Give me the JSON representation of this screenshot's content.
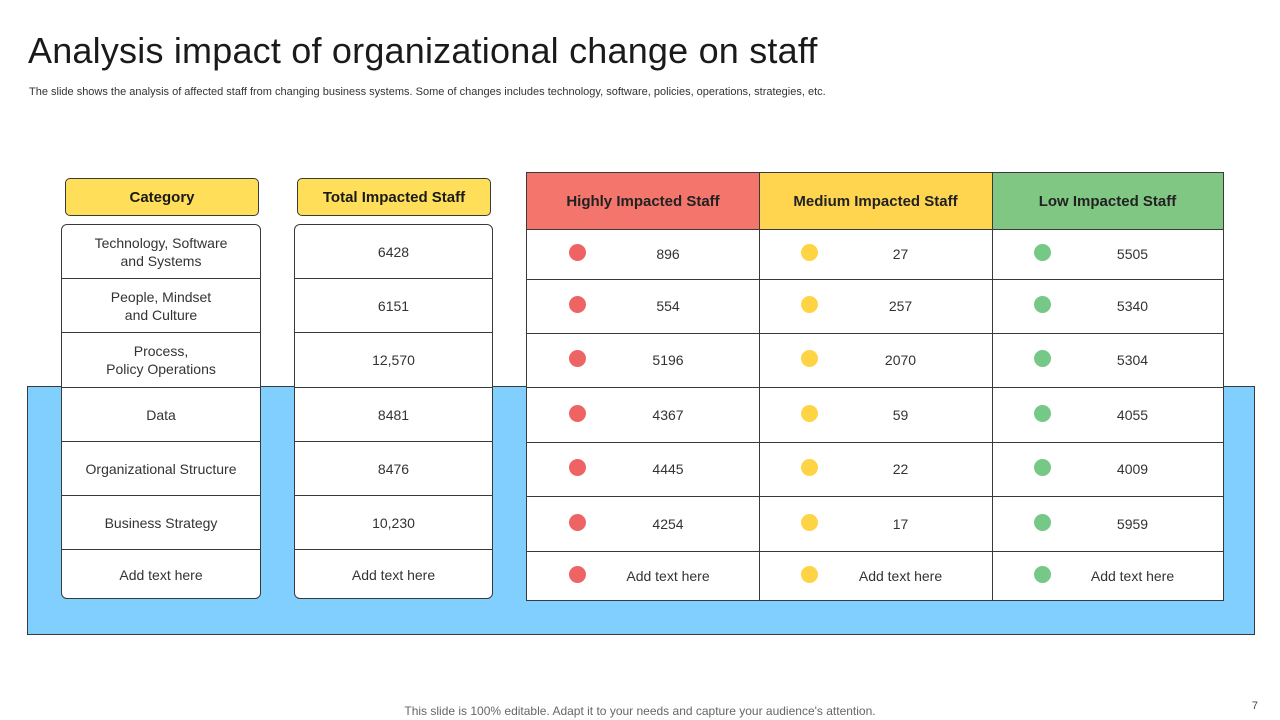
{
  "slide": {
    "title": "Analysis impact of organizational change on staff",
    "subtitle": "The slide shows the analysis of affected staff from changing business systems. Some of changes includes technology, software, policies, operations, strategies, etc.",
    "footer": "This slide is 100% editable. Adapt it to your needs and capture your audience's attention.",
    "page_number": "7"
  },
  "colors": {
    "band": "#80cfff",
    "header_yellow": "#ffde59",
    "high": "#f4756b",
    "medium": "#ffd54f",
    "low": "#81c784",
    "dot_high": "#ee6464",
    "dot_medium": "#ffd444",
    "dot_low": "#76c887"
  },
  "category_column": {
    "header": "Category",
    "rows": [
      "Technology, Software\nand Systems",
      "People, Mindset\nand Culture",
      "Process,\nPolicy Operations",
      "Data",
      "Organizational Structure",
      "Business Strategy",
      "Add text here"
    ]
  },
  "total_column": {
    "header": "Total Impacted Staff",
    "rows": [
      "6428",
      "6151",
      "12,570",
      "8481",
      "8476",
      "10,230",
      "Add text here"
    ]
  },
  "impact_table": {
    "headers": [
      "Highly Impacted Staff",
      "Medium Impacted Staff",
      "Low Impacted Staff"
    ],
    "rows": [
      [
        "896",
        "27",
        "5505"
      ],
      [
        "554",
        "257",
        "5340"
      ],
      [
        "5196",
        "2070",
        "5304"
      ],
      [
        "4367",
        "59",
        "4055"
      ],
      [
        "4445",
        "22",
        "4009"
      ],
      [
        "4254",
        "17",
        "5959"
      ],
      [
        "Add text here",
        "Add text here",
        "Add text here"
      ]
    ]
  }
}
